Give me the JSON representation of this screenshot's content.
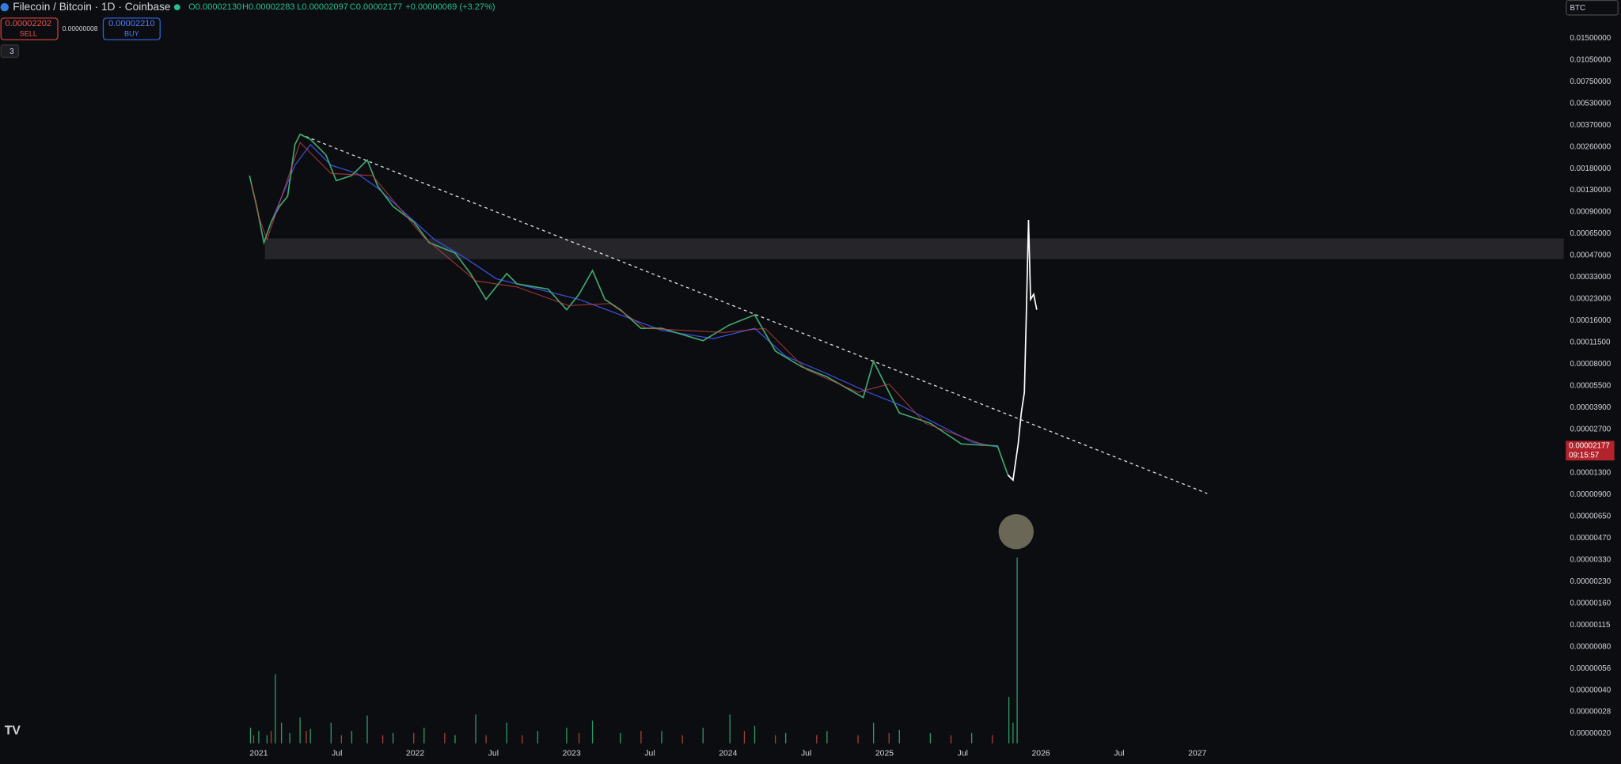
{
  "header": {
    "symbol": "Filecoin / Bitcoin · 1D · Coinbase",
    "open": "O0.00002130",
    "high": "H0.00002283",
    "low": "L0.00002097",
    "close": "C0.00002177",
    "change": "+0.00000069 (+3.27%)"
  },
  "trade": {
    "sell_price": "0.00002202",
    "sell": "SELL",
    "spread": "0.00000008",
    "buy_price": "0.00002210",
    "buy": "BUY"
  },
  "indicators": {
    "count": "3"
  },
  "currency": "BTC",
  "price_axis": {
    "labels": [
      "0.01500000",
      "0.01050000",
      "0.00750000",
      "0.00530000",
      "0.00370000",
      "0.00260000",
      "0.00180000",
      "0.00130000",
      "0.00090000",
      "0.00065000",
      "0.00047000",
      "0.00033000",
      "0.00023000",
      "0.00016000",
      "0.00011500",
      "0.00008000",
      "0.00005500",
      "0.00003900",
      "0.00002700",
      "0.00001300",
      "0.00000900",
      "0.00000650",
      "0.00000470",
      "0.00000330",
      "0.00000230",
      "0.00000160",
      "0.00000115",
      "0.00000080",
      "0.00000056",
      "0.00000040",
      "0.00000028",
      "0.00000020"
    ],
    "current_price": "0.00002177",
    "countdown": "09:15:57"
  },
  "time_axis": {
    "labels": [
      "2021",
      "Jul",
      "2022",
      "Jul",
      "2023",
      "Jul",
      "2024",
      "Jul",
      "2025",
      "Jul",
      "2026",
      "Jul",
      "2027"
    ]
  }
}
